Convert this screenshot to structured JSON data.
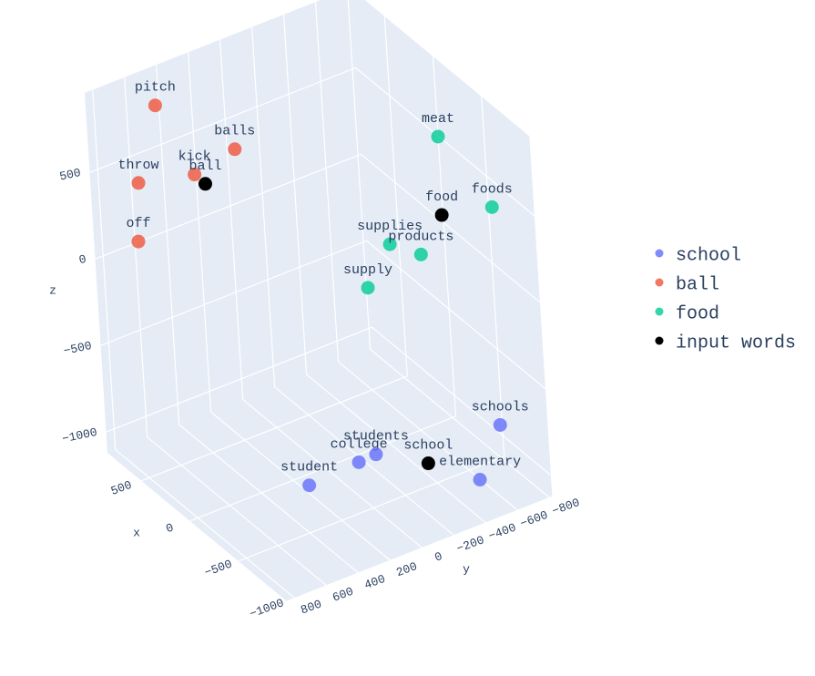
{
  "chart_data": {
    "type": "scatter3d",
    "xaxis_title": "x",
    "yaxis_title": "y",
    "zaxis_title": "z",
    "xlim": [
      -1000,
      850
    ],
    "ylim": [
      -820,
      850
    ],
    "zlim": [
      -1120,
      960
    ],
    "xticks": [
      500,
      0,
      {
        "value": -500,
        "label": "−500"
      },
      {
        "value": -1000,
        "label": "−1000"
      }
    ],
    "yticks": [
      800,
      600,
      400,
      200,
      0,
      {
        "value": -200,
        "label": "−200"
      },
      {
        "value": -400,
        "label": "−400"
      },
      {
        "value": -600,
        "label": "−600"
      },
      {
        "value": -800,
        "label": "−800"
      }
    ],
    "zticks": [
      500,
      0,
      {
        "value": -500,
        "label": "−500"
      },
      {
        "value": -1000,
        "label": "−1000"
      }
    ],
    "grid": true,
    "series": [
      {
        "name": "school",
        "color": "#636efa",
        "text": [
          "student",
          "college",
          "students",
          "schools",
          "elementary"
        ],
        "x": [
          -560,
          -530,
          -580,
          -850,
          -930
        ],
        "y": [
          420,
          90,
          10,
          -610,
          -420
        ],
        "z": [
          -810,
          -810,
          -770,
          -700,
          -910
        ]
      },
      {
        "name": "ball",
        "color": "#ef553b",
        "text": [
          "pitch",
          "balls",
          "kick",
          "throw",
          "off"
        ],
        "x": [
          660,
          250,
          350,
          540,
          510
        ],
        "y": [
          530,
          290,
          490,
          730,
          770
        ],
        "z": [
          860,
          710,
          590,
          540,
          230
        ]
      },
      {
        "name": "food",
        "color": "#00cc96",
        "text": [
          "meat",
          "foods",
          "supplies",
          "products",
          "supply"
        ],
        "x": [
          -230,
          -840,
          -200,
          -390,
          -180
        ],
        "y": [
          -690,
          -650,
          -370,
          -450,
          -230
        ],
        "z": [
          650,
          540,
          130,
          130,
          -80
        ]
      },
      {
        "name": "input words",
        "color": "#000000",
        "text": [
          "school",
          "ball",
          "food"
        ],
        "x": [
          -770,
          310,
          -590
        ],
        "y": [
          -200,
          450,
          -480
        ],
        "z": [
          -810,
          540,
          440
        ]
      }
    ]
  }
}
